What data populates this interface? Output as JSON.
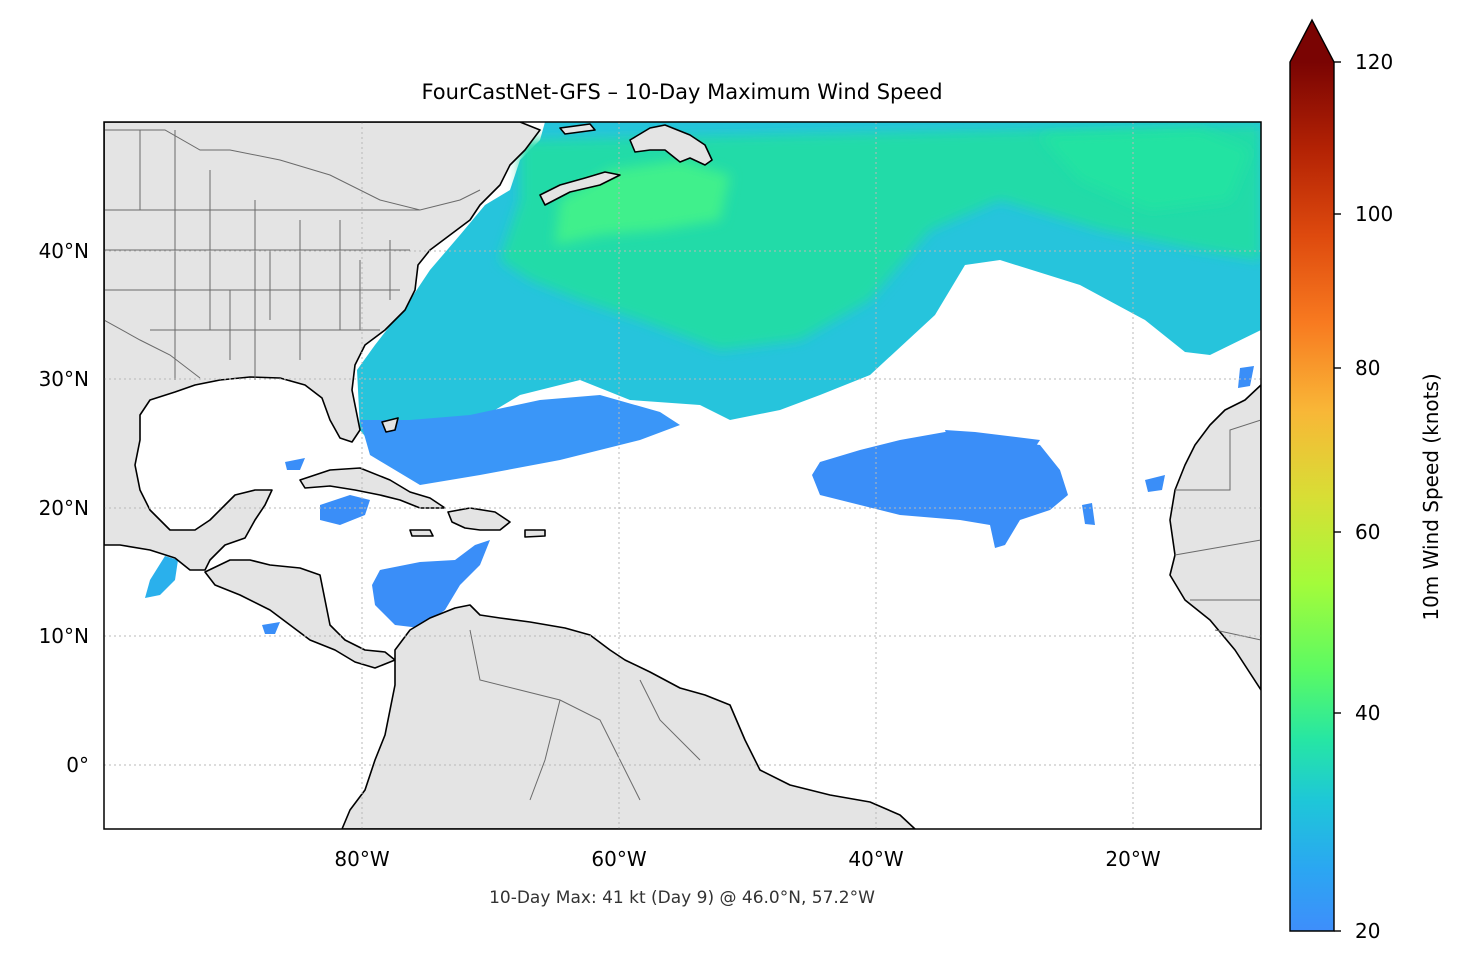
{
  "title": "FourCastNet-GFS – 10-Day Maximum Wind Speed",
  "footer": "10-Day Max: 41 kt (Day 9) @ 46.0°N, 57.2°W",
  "map": {
    "lon_range": [
      -100,
      -10
    ],
    "lat_range": [
      -5,
      50
    ],
    "lon_ticks": [
      {
        "value": -80,
        "label": "80°W"
      },
      {
        "value": -60,
        "label": "60°W"
      },
      {
        "value": -40,
        "label": "40°W"
      },
      {
        "value": -20,
        "label": "20°W"
      }
    ],
    "lat_ticks": [
      {
        "value": 40,
        "label": "40°N"
      },
      {
        "value": 30,
        "label": "30°N"
      },
      {
        "value": 20,
        "label": "20°N"
      },
      {
        "value": 10,
        "label": "10°N"
      },
      {
        "value": 0,
        "label": "0°"
      }
    ],
    "gridlines": true,
    "land_color": "#e4e4e4",
    "ocean_color": "#ffffff"
  },
  "colorbar": {
    "label": "10m Wind Speed (knots)",
    "min": 20,
    "max": 120,
    "extend": "max",
    "colormap": "turbo",
    "ticks": [
      {
        "value": 20,
        "label": "20"
      },
      {
        "value": 40,
        "label": "40"
      },
      {
        "value": 60,
        "label": "60"
      },
      {
        "value": 80,
        "label": "80"
      },
      {
        "value": 100,
        "label": "100"
      },
      {
        "value": 120,
        "label": "120"
      }
    ]
  },
  "chart_data": {
    "type": "heatmap",
    "title": "FourCastNet-GFS – 10-Day Maximum Wind Speed",
    "units": "knots",
    "max_point": {
      "value": 41,
      "day": 9,
      "lat": 46.0,
      "lon": -57.2
    },
    "colors": {
      "c20": "#3e8efb",
      "c25": "#2ba6f2",
      "c30": "#1ec7d8",
      "c35": "#22e3a8",
      "c40": "#38f08a"
    }
  }
}
